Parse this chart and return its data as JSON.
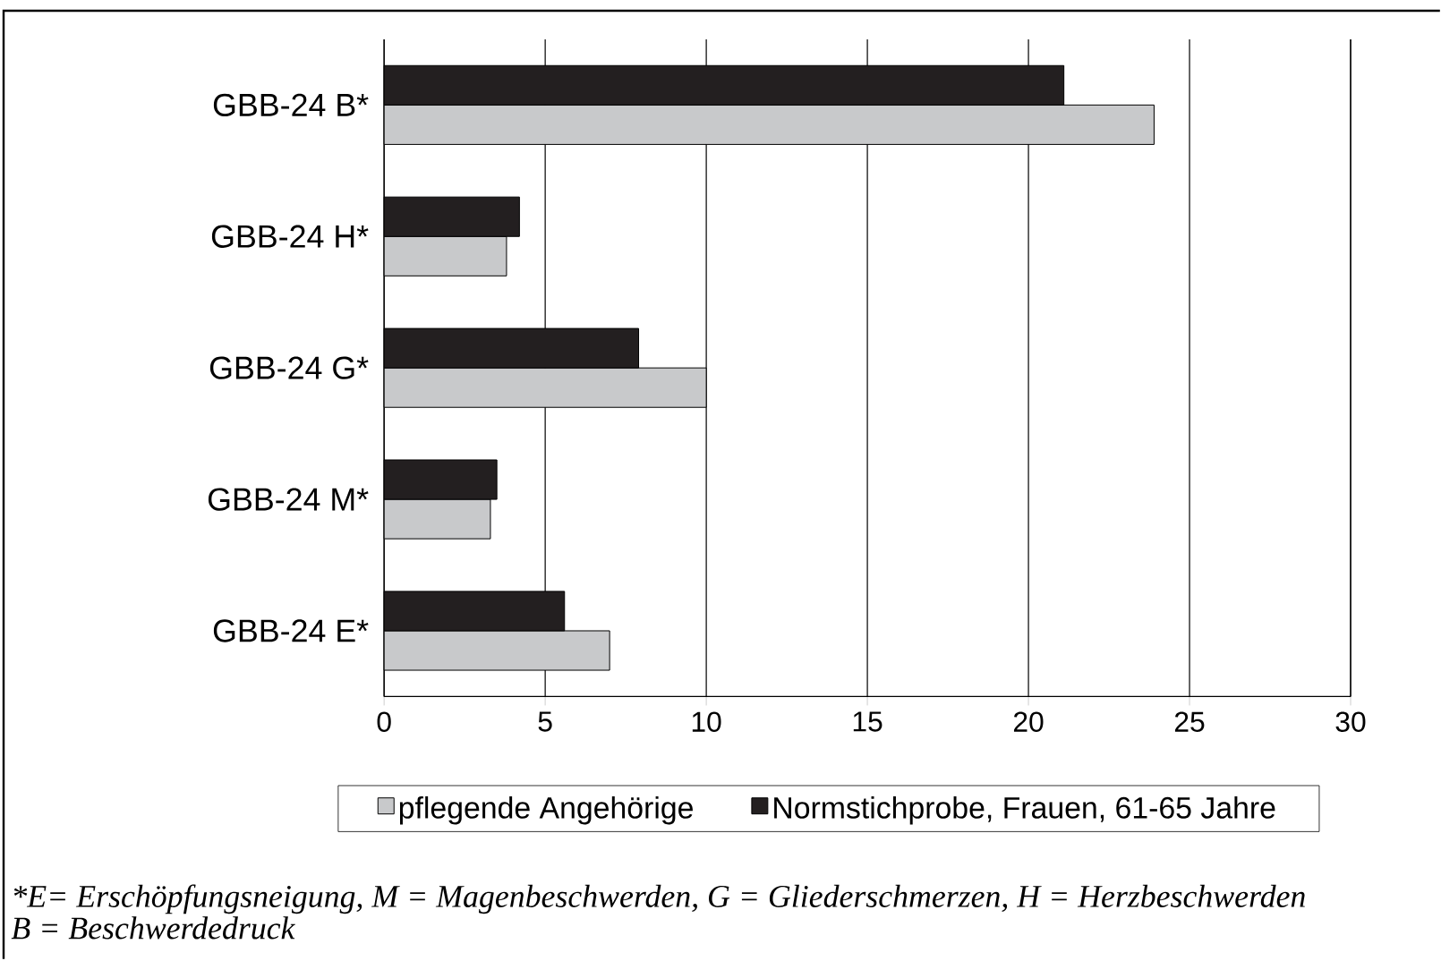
{
  "chart_data": {
    "type": "bar",
    "orientation": "horizontal",
    "categories": [
      "GBB-24 B*",
      "GBB-24 H*",
      "GBB-24 G*",
      "GBB-24 M*",
      "GBB-24 E*"
    ],
    "series": [
      {
        "name": "pflegende Angehörige",
        "color": "#c8c9cb",
        "values": [
          23.9,
          3.8,
          10.0,
          3.3,
          7.0
        ]
      },
      {
        "name": "Normstichprobe, Frauen,  61-65 Jahre",
        "color": "#231f20",
        "values": [
          21.1,
          4.2,
          7.9,
          3.5,
          5.6
        ]
      }
    ],
    "xlim": [
      0,
      30
    ],
    "xticks": [
      0,
      5,
      10,
      15,
      20,
      25,
      30
    ],
    "grid": "x",
    "legend": "bottom",
    "annotations": [
      "*E= Erschöpfungsneigung, M = Magenbeschwerden, G = Gliederschmerzen, H = Herzbeschwerden",
      "B = Beschwerdedruck"
    ]
  }
}
